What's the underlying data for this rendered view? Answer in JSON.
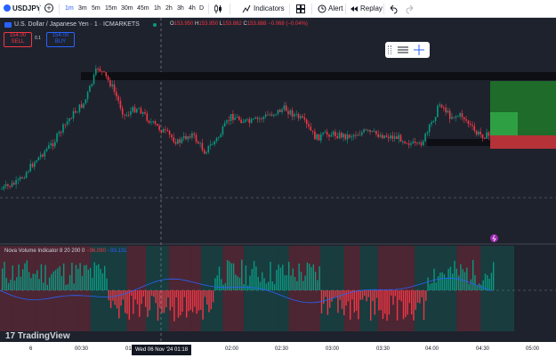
{
  "toolbar": {
    "symbol": "USDJPY",
    "timeframes": [
      "1m",
      "3m",
      "5m",
      "15m",
      "30m",
      "45m",
      "1h",
      "2h",
      "3h",
      "4h",
      "D"
    ],
    "active_timeframe": "1m",
    "indicators_label": "Indicators",
    "alert_label": "Alert",
    "replay_label": "Replay"
  },
  "legend": {
    "title": "U.S. Dollar / Japanese Yen · 1 · ICMARKETS",
    "o_label": "O",
    "o_value": "153.950",
    "h_label": "H",
    "h_value": "153.950",
    "l_label": "L",
    "l_value": "153.882",
    "c_label": "C",
    "c_value": "153.888",
    "change": "−0.068 (−0.04%)"
  },
  "trade": {
    "sell_price": "154.00",
    "sell_label": "SELL",
    "spread": "0.1",
    "buy_price": "154.00",
    "buy_label": "BUY"
  },
  "indicator": {
    "name": "Nova Volume Indicator 8 20 200 0",
    "value_red": "−96.090",
    "value_blue": "−93.131"
  },
  "logo_text": "TradingView",
  "time_axis": {
    "labels": [
      "6",
      "00:30",
      "01:",
      "02:00",
      "02:30",
      "03:00",
      "03:30",
      "04:00",
      "04:30",
      "05:00"
    ],
    "crosshair_label": "Wed 06 Nov '24   01:18"
  },
  "colors": {
    "up": "#089981",
    "down": "#f23645",
    "background": "#1e222d",
    "accent": "#2962ff"
  },
  "icons": [
    "plus-circle-icon",
    "candles-icon",
    "indicators-icon",
    "layout-icon",
    "alert-icon",
    "replay-icon",
    "undo-icon",
    "redo-icon"
  ]
}
